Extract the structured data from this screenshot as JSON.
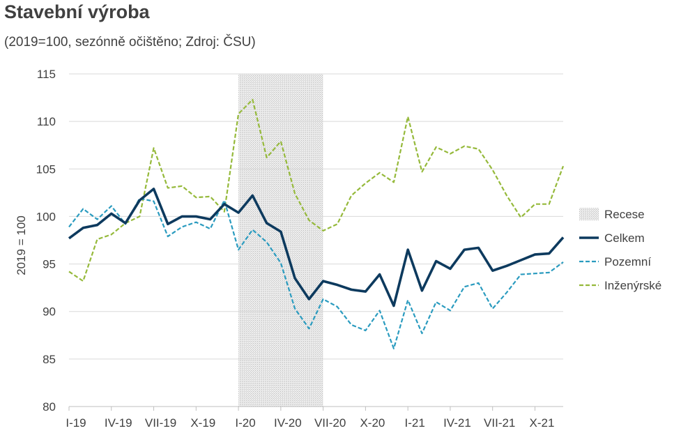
{
  "chart_data": {
    "type": "line",
    "title": "Stavební výroba",
    "subtitle": "(2019=100, sezónně očištěno; Zdroj: ČSU)",
    "ylabel": "2019 = 100",
    "xlabel": "",
    "ylim": [
      80,
      115
    ],
    "yticks": [
      80,
      85,
      90,
      95,
      100,
      105,
      110,
      115
    ],
    "xtick_labels": [
      "I-19",
      "IV-19",
      "VII-19",
      "X-19",
      "I-20",
      "IV-20",
      "VII-20",
      "X-20",
      "I-21",
      "IV-21",
      "VII-21",
      "X-21"
    ],
    "n_points": 36,
    "grid": "horizontal",
    "legend_position": "right",
    "recession": {
      "label": "Recese",
      "start_index": 12,
      "end_index": 18,
      "color": "#c8c8c8"
    },
    "series": [
      {
        "name": "Celkem",
        "style": "solid",
        "color": "#0d3a5e",
        "values": [
          97.7,
          98.8,
          99.1,
          100.3,
          99.3,
          101.7,
          102.9,
          99.2,
          100.0,
          100.0,
          99.7,
          101.3,
          100.4,
          102.2,
          99.3,
          98.4,
          93.5,
          91.3,
          93.2,
          92.8,
          92.3,
          92.1,
          93.9,
          90.6,
          96.5,
          92.2,
          95.3,
          94.5,
          96.5,
          96.7,
          94.3,
          94.8,
          95.4,
          96.0,
          96.1,
          97.8
        ]
      },
      {
        "name": "Pozemní",
        "style": "dashed",
        "color": "#2a9bbf",
        "values": [
          98.9,
          100.8,
          99.7,
          101.1,
          99.2,
          101.9,
          101.6,
          97.9,
          98.9,
          99.4,
          98.7,
          101.7,
          96.5,
          98.6,
          97.3,
          95.1,
          90.3,
          88.2,
          91.3,
          90.5,
          88.6,
          88.0,
          90.1,
          86.1,
          91.2,
          87.7,
          91.0,
          90.1,
          92.6,
          93.0,
          90.3,
          92.0,
          93.9,
          94.0,
          94.1,
          95.2
        ]
      },
      {
        "name": "Inženýrské",
        "style": "dashed",
        "color": "#95b93a",
        "values": [
          94.2,
          93.2,
          97.6,
          98.1,
          99.3,
          100.0,
          107.2,
          103.0,
          103.2,
          102.0,
          102.1,
          100.5,
          110.8,
          112.3,
          106.2,
          107.9,
          102.4,
          99.6,
          98.5,
          99.2,
          102.2,
          103.5,
          104.6,
          103.6,
          110.5,
          104.7,
          107.3,
          106.6,
          107.4,
          107.1,
          104.9,
          102.2,
          99.9,
          101.3,
          101.3,
          105.3
        ]
      }
    ]
  }
}
